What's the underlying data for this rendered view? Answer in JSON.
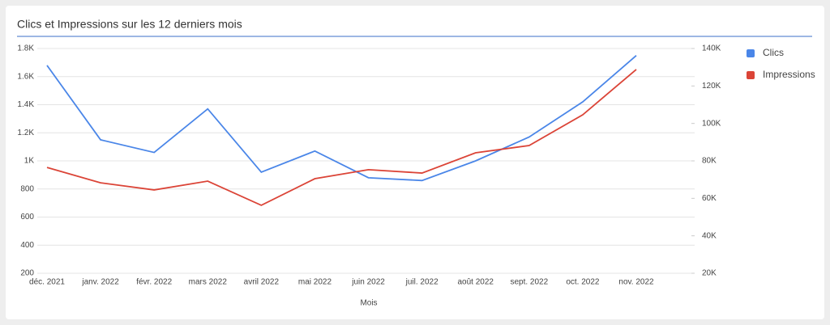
{
  "chart_data": {
    "type": "line",
    "title": "Clics et Impressions sur les 12 derniers mois",
    "x_label": "Mois",
    "categories": [
      "déc. 2021",
      "janv. 2022",
      "févr. 2022",
      "mars 2022",
      "avril 2022",
      "mai 2022",
      "juin 2022",
      "juil. 2022",
      "août 2022",
      "sept. 2022",
      "oct. 2022",
      "nov. 2022"
    ],
    "series": [
      {
        "name": "Clics",
        "color": "#4a86e8",
        "values": [
          1680,
          1150,
          1060,
          1370,
          920,
          1070,
          880,
          860,
          1000,
          1170,
          1420,
          1750
        ]
      },
      {
        "name": "Impressions",
        "color": "#db4437",
        "axis": "y2",
        "values": [
          76500,
          68300,
          64500,
          69200,
          56300,
          70500,
          75300,
          73500,
          84300,
          88200,
          104600,
          128800
        ]
      }
    ],
    "ylim": [
      200,
      1800
    ],
    "yticks": [
      200,
      400,
      600,
      800,
      {
        "value": 1000,
        "label": "1K"
      },
      {
        "value": 1200,
        "label": "1.2K"
      },
      {
        "value": 1400,
        "label": "1.4K"
      },
      {
        "value": 1600,
        "label": "1.6K"
      },
      {
        "value": 1800,
        "label": "1.8K"
      }
    ],
    "y2lim": [
      20000,
      140000
    ],
    "y2ticks": [
      {
        "value": 20000,
        "label": "20K"
      },
      {
        "value": 40000,
        "label": "40K"
      },
      {
        "value": 60000,
        "label": "60K"
      },
      {
        "value": 80000,
        "label": "80K"
      },
      {
        "value": 100000,
        "label": "100K"
      },
      {
        "value": 120000,
        "label": "120K"
      },
      {
        "value": 140000,
        "label": "140K"
      }
    ],
    "grid": true,
    "legend": "right"
  }
}
